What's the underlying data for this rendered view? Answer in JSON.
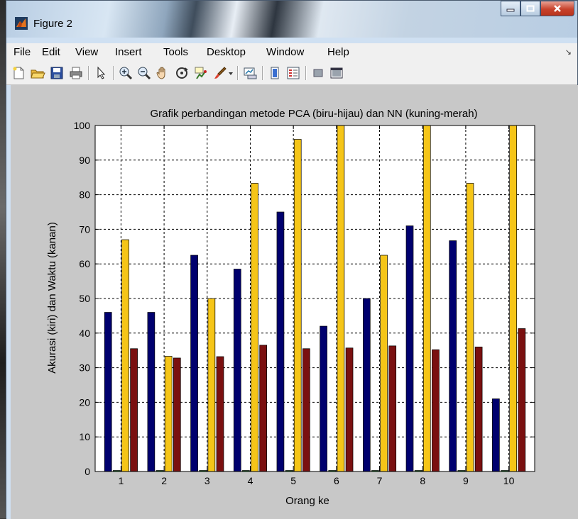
{
  "window": {
    "title": "Figure 2"
  },
  "menu": [
    "File",
    "Edit",
    "View",
    "Insert",
    "Tools",
    "Desktop",
    "Window",
    "Help"
  ],
  "toolbar_icons": [
    "new-figure-icon",
    "open-file-icon",
    "save-icon",
    "print-icon",
    "pointer-icon",
    "zoom-in-icon",
    "zoom-out-icon",
    "pan-hand-icon",
    "rotate-3d-icon",
    "data-cursor-icon",
    "brush-icon",
    "brush-dropdown-icon",
    "link-plot-icon",
    "colorbar-icon",
    "legend-icon",
    "hide-plot-tools-icon",
    "show-plot-tools-icon"
  ],
  "chart_data": {
    "type": "bar",
    "title": "Grafik perbandingan metode PCA (biru-hijau) dan NN (kuning-merah)",
    "xlabel": "Orang ke",
    "ylabel": "Akurasi (kiri) dan Waktu (kanan)",
    "categories": [
      "1",
      "2",
      "3",
      "4",
      "5",
      "6",
      "7",
      "8",
      "9",
      "10"
    ],
    "ylim": [
      0,
      100
    ],
    "yticks": [
      "0",
      "10",
      "20",
      "30",
      "40",
      "50",
      "60",
      "70",
      "80",
      "90",
      "100"
    ],
    "grid": true,
    "series": [
      {
        "color": "#00006e",
        "values": [
          46,
          46,
          62.5,
          58.5,
          75,
          42,
          50,
          71,
          66.7,
          21
        ]
      },
      {
        "color": "#0a6a1a",
        "values": [
          0.3,
          0.3,
          0.3,
          0.3,
          0.3,
          0.3,
          0.3,
          0.3,
          0.3,
          0.3
        ]
      },
      {
        "color": "#f5c518",
        "values": [
          67,
          33.3,
          50,
          83.3,
          96,
          100,
          62.5,
          100,
          83.3,
          100
        ]
      },
      {
        "color": "#7a1010",
        "values": [
          35.5,
          32.8,
          33.2,
          36.5,
          35.5,
          35.7,
          36.3,
          35.2,
          36,
          41.3
        ]
      }
    ]
  }
}
